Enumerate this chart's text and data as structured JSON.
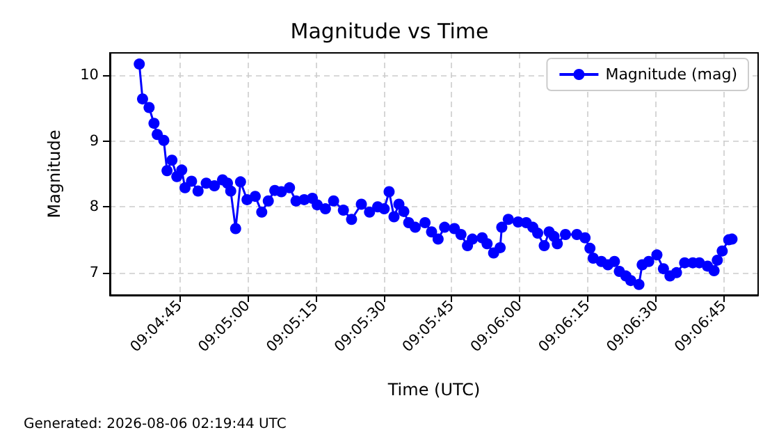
{
  "chart_data": {
    "type": "line",
    "title": "Magnitude vs Time",
    "xlabel": "Time (UTC)",
    "ylabel": "Magnitude",
    "annotations": [
      "Generated: 2026-08-06 02:19:44 UTC"
    ],
    "x": [
      9.0767,
      9.0769,
      9.0773,
      9.0776,
      9.0778,
      9.0782,
      9.0784,
      9.0787,
      9.079,
      9.0793,
      9.0795,
      9.0799,
      9.0803,
      9.0808,
      9.0813,
      9.0818,
      9.0821,
      9.0823,
      9.0826,
      9.0829,
      9.0833,
      9.0838,
      9.0842,
      9.0846,
      9.085,
      9.0854,
      9.0859,
      9.0863,
      9.0868,
      9.0873,
      9.0876,
      9.0881,
      9.0886,
      9.0892,
      9.0897,
      9.0903,
      9.0908,
      9.0913,
      9.0917,
      9.092,
      9.0923,
      9.0926,
      9.0929,
      9.0932,
      9.0936,
      9.0942,
      9.0946,
      9.095,
      9.0954,
      9.096,
      9.0964,
      9.0968,
      9.0971,
      9.0977,
      9.098,
      9.0984,
      9.0988,
      9.0989,
      9.0993,
      9.0999,
      9.1004,
      9.1008,
      9.1011,
      9.1015,
      9.1018,
      9.1021,
      9.1023,
      9.1028,
      9.1035,
      9.104,
      9.1043,
      9.1045,
      9.105,
      9.1054,
      9.1058,
      9.1061,
      9.1065,
      9.1068,
      9.1073,
      9.1075,
      9.1079,
      9.1084,
      9.1088,
      9.1092,
      9.1096,
      9.1101,
      9.1106,
      9.111,
      9.1115,
      9.1119,
      9.1121,
      9.1124,
      9.1128,
      9.113
    ],
    "series": [
      {
        "name": "Magnitude (mag)",
        "color": "#0000ff",
        "values": [
          10.17,
          9.64,
          9.51,
          9.27,
          9.1,
          9.01,
          8.55,
          8.71,
          8.46,
          8.56,
          8.29,
          8.39,
          8.24,
          8.36,
          8.32,
          8.41,
          8.36,
          8.24,
          7.67,
          8.38,
          8.11,
          8.16,
          7.92,
          8.09,
          8.25,
          8.23,
          8.29,
          8.09,
          8.11,
          8.13,
          8.03,
          7.97,
          8.09,
          7.95,
          7.81,
          8.04,
          7.92,
          8.0,
          7.97,
          8.23,
          7.85,
          8.04,
          7.93,
          7.76,
          7.69,
          7.76,
          7.62,
          7.51,
          7.69,
          7.67,
          7.58,
          7.41,
          7.51,
          7.53,
          7.44,
          7.3,
          7.38,
          7.69,
          7.81,
          7.77,
          7.76,
          7.69,
          7.6,
          7.41,
          7.62,
          7.55,
          7.44,
          7.58,
          7.58,
          7.53,
          7.37,
          7.22,
          7.17,
          7.12,
          7.17,
          7.02,
          6.95,
          6.88,
          6.82,
          7.12,
          7.17,
          7.27,
          7.06,
          6.95,
          7.0,
          7.15,
          7.15,
          7.15,
          7.1,
          7.03,
          7.19,
          7.33,
          7.5,
          7.51
        ]
      }
    ],
    "xlim": [
      9.0749,
      9.1146
    ],
    "xticks": [
      {
        "value": 9.079167,
        "label": "09:04:45"
      },
      {
        "value": 9.083333,
        "label": "09:05:00"
      },
      {
        "value": 9.0875,
        "label": "09:05:15"
      },
      {
        "value": 9.091667,
        "label": "09:05:30"
      },
      {
        "value": 9.095833,
        "label": "09:05:45"
      },
      {
        "value": 9.1,
        "label": "09:06:00"
      },
      {
        "value": 9.104167,
        "label": "09:06:15"
      },
      {
        "value": 9.108333,
        "label": "09:06:30"
      },
      {
        "value": 9.1125,
        "label": "09:06:45"
      }
    ],
    "ylim": [
      6.66,
      10.34
    ],
    "yticks": [
      7,
      8,
      9,
      10
    ],
    "grid": true,
    "legend": "top right",
    "marker": "circle",
    "line_style": "solid"
  }
}
